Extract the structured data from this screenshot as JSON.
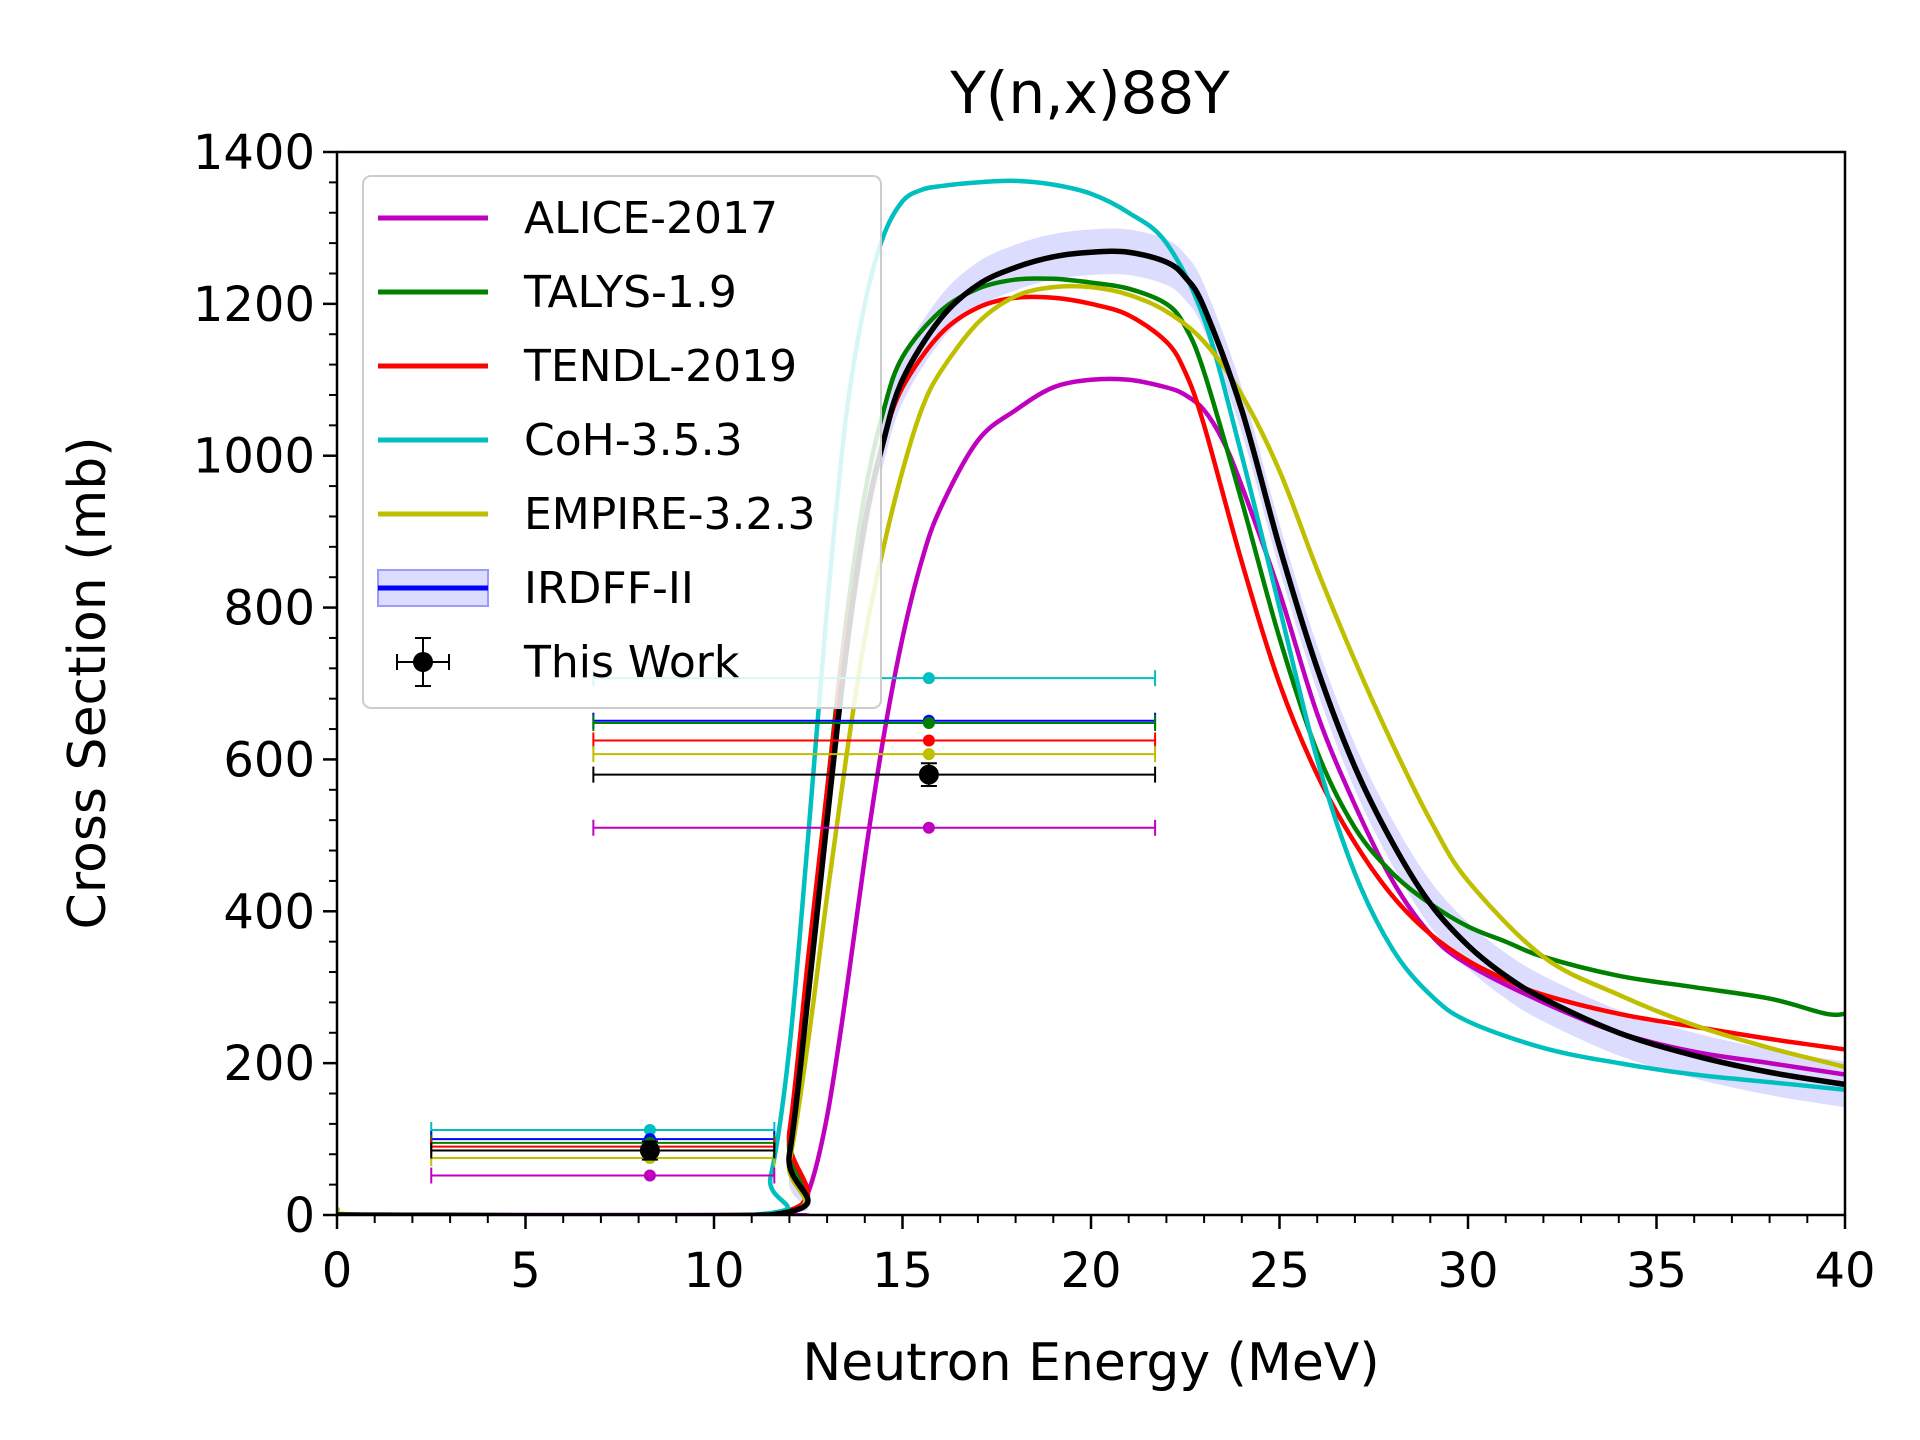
{
  "chart_data": {
    "type": "line",
    "title": "Y(n,x)88Y",
    "xlabel": "Neutron Energy (MeV)",
    "ylabel": "Cross Section (mb)",
    "xlim": [
      0,
      40
    ],
    "ylim": [
      0,
      1400
    ],
    "xticks": [
      0,
      5,
      10,
      15,
      20,
      25,
      30,
      35,
      40
    ],
    "yticks": [
      0,
      200,
      400,
      600,
      800,
      1000,
      1200,
      1400
    ],
    "grid": false,
    "legend_position": "upper-left",
    "series": [
      {
        "name": "ALICE-2017",
        "color": "#bf00bf",
        "x": [
          0,
          11.5,
          12,
          12.5,
          13,
          13.5,
          14,
          14.5,
          15,
          15.5,
          16,
          17,
          18,
          19,
          20,
          21,
          22,
          22.5,
          23,
          23.5,
          24,
          25,
          26,
          27,
          28,
          29,
          30,
          32,
          34,
          36,
          38,
          40
        ],
        "y": [
          0,
          0,
          0,
          30,
          130,
          290,
          470,
          630,
          760,
          860,
          930,
          1020,
          1060,
          1090,
          1100,
          1100,
          1090,
          1080,
          1060,
          1020,
          960,
          820,
          660,
          540,
          440,
          370,
          330,
          280,
          240,
          215,
          200,
          185
        ]
      },
      {
        "name": "TALYS-1.9",
        "color": "#008000",
        "x": [
          0,
          11.5,
          12,
          12.5,
          13,
          13.5,
          14,
          14.5,
          15,
          16,
          17,
          18,
          19,
          20,
          21,
          22,
          22.5,
          23,
          24,
          25,
          26,
          27,
          28,
          29,
          30,
          31,
          32,
          34,
          36,
          38,
          39.5,
          40
        ],
        "y": [
          0,
          0,
          100,
          330,
          560,
          780,
          950,
          1060,
          1130,
          1190,
          1220,
          1232,
          1233,
          1228,
          1220,
          1200,
          1170,
          1110,
          940,
          760,
          610,
          510,
          450,
          410,
          380,
          360,
          340,
          315,
          300,
          285,
          265,
          265
        ]
      },
      {
        "name": "TENDL-2019",
        "color": "#ff0000",
        "x": [
          0,
          11.5,
          12,
          12.5,
          13,
          13.5,
          14,
          14.5,
          15,
          16,
          17,
          18,
          19,
          20,
          21,
          22,
          22.5,
          23,
          24,
          25,
          26,
          27,
          28,
          29,
          30,
          31,
          32,
          34,
          36,
          38,
          40
        ],
        "y": [
          0,
          0,
          110,
          340,
          560,
          760,
          910,
          1020,
          1090,
          1160,
          1195,
          1208,
          1208,
          1200,
          1185,
          1150,
          1110,
          1040,
          860,
          700,
          580,
          490,
          420,
          370,
          335,
          310,
          290,
          265,
          248,
          232,
          218
        ]
      },
      {
        "name": "CoH-3.5.3",
        "color": "#00bfbf",
        "x": [
          0,
          11,
          11.5,
          12,
          12.5,
          13,
          13.5,
          14,
          14.5,
          15,
          15.5,
          16,
          17,
          18,
          19,
          20,
          21,
          22,
          23,
          24,
          25,
          26,
          27,
          28,
          29,
          30,
          32,
          34,
          36,
          38,
          40
        ],
        "y": [
          0,
          0,
          50,
          220,
          500,
          800,
          1050,
          1200,
          1290,
          1335,
          1350,
          1355,
          1360,
          1362,
          1357,
          1345,
          1320,
          1280,
          1180,
          1000,
          800,
          600,
          450,
          350,
          290,
          255,
          220,
          200,
          185,
          175,
          165
        ]
      },
      {
        "name": "EMPIRE-3.2.3",
        "color": "#bfbf00",
        "x": [
          0,
          1,
          11.5,
          12,
          12.5,
          13,
          13.5,
          14,
          14.5,
          15,
          15.5,
          16,
          17,
          18,
          19,
          20,
          21,
          22,
          23,
          24,
          25,
          26,
          27,
          28,
          29,
          30,
          32,
          34,
          36,
          38,
          40
        ],
        "y": [
          8,
          0,
          0,
          70,
          230,
          420,
          600,
          760,
          880,
          980,
          1060,
          1110,
          1175,
          1210,
          1222,
          1222,
          1212,
          1190,
          1150,
          1080,
          980,
          850,
          730,
          620,
          520,
          440,
          340,
          290,
          250,
          220,
          195
        ]
      },
      {
        "name": "IRDFF-II",
        "color": "#0000ff",
        "x": [
          0,
          11.5,
          12,
          12.5,
          13,
          13.5,
          14,
          14.5,
          15,
          16,
          17,
          18,
          19,
          20,
          21,
          22,
          22.5,
          23,
          24,
          25,
          26,
          27,
          28,
          29,
          30,
          31,
          32,
          34,
          36,
          38,
          40
        ],
        "y": [
          0,
          0,
          80,
          290,
          520,
          740,
          910,
          1020,
          1100,
          1180,
          1225,
          1248,
          1262,
          1268,
          1268,
          1255,
          1235,
          1195,
          1060,
          880,
          720,
          590,
          490,
          410,
          355,
          315,
          285,
          240,
          210,
          188,
          172
        ]
      }
    ],
    "irdff_band_width_mb": 30,
    "this_work_label": "This Work",
    "this_work": {
      "color": "#000000",
      "points": [
        {
          "x": 8.3,
          "y": 85,
          "xerr_low": 5.8,
          "xerr_high": 3.3,
          "yerr": 12
        },
        {
          "x": 15.7,
          "y": 580,
          "xerr_low": 8.9,
          "xerr_high": 6.0,
          "yerr": 15
        }
      ]
    },
    "flux_averaged": [
      {
        "name": "CoH-3.5.3",
        "color": "#00bfbf",
        "values": [
          112,
          707
        ]
      },
      {
        "name": "IRDFF-II",
        "color": "#0000ff",
        "values": [
          100,
          651
        ]
      },
      {
        "name": "TALYS-1.9",
        "color": "#008000",
        "values": [
          95,
          648
        ]
      },
      {
        "name": "TENDL-2019",
        "color": "#ff0000",
        "values": [
          90,
          625
        ]
      },
      {
        "name": "EMPIRE-3.2.3",
        "color": "#bfbf00",
        "values": [
          75,
          607
        ]
      },
      {
        "name": "ALICE-2017",
        "color": "#bf00bf",
        "values": [
          52,
          510
        ]
      }
    ]
  }
}
